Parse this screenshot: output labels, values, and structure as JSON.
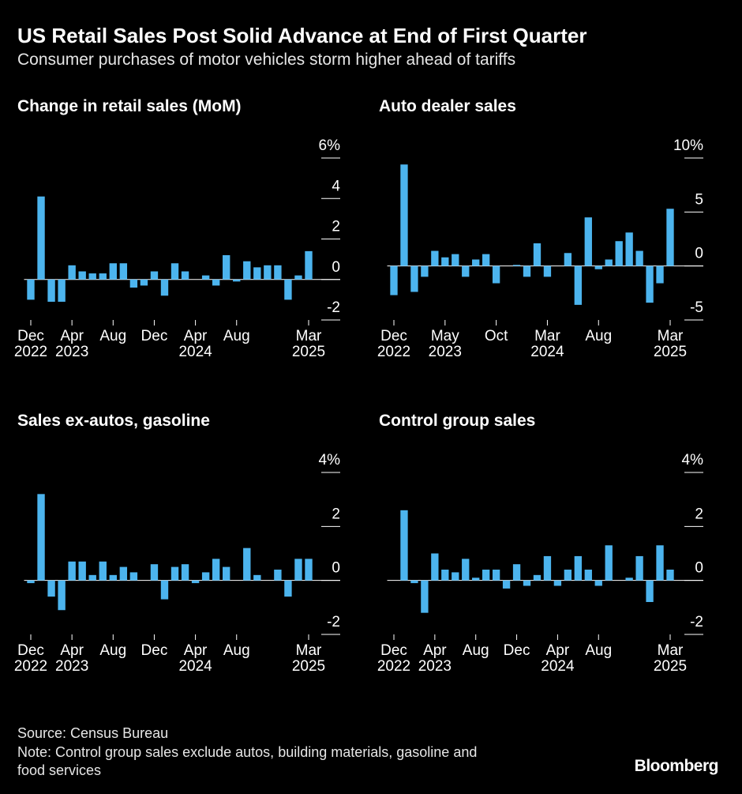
{
  "header": {
    "title": "US Retail Sales Post Solid Advance at End of First Quarter",
    "subtitle": "Consumer purchases of motor vehicles storm higher ahead of tariffs"
  },
  "footer": {
    "source": "Source: Census Bureau",
    "note_line1": "Note: Control group sales exclude autos, building materials, gasoline and",
    "note_line2": "food services",
    "brand": "Bloomberg"
  },
  "colors": {
    "bar": "#4cb4ee",
    "background": "#000000",
    "text": "#ffffff"
  },
  "chart_data": [
    {
      "type": "bar",
      "title": "Change in retail sales (MoM)",
      "unit": "%",
      "ylim": [
        -2,
        6
      ],
      "yticks": [
        {
          "value": 6,
          "label": "6%"
        },
        {
          "value": 4,
          "label": "4"
        },
        {
          "value": 2,
          "label": "2"
        },
        {
          "value": 0,
          "label": "0"
        },
        {
          "value": -2,
          "label": "-2"
        }
      ],
      "xticks": [
        {
          "index": 0,
          "line1": "Dec",
          "line2": "2022"
        },
        {
          "index": 4,
          "line1": "Apr",
          "line2": "2023"
        },
        {
          "index": 8,
          "line1": "Aug",
          "line2": ""
        },
        {
          "index": 12,
          "line1": "Dec",
          "line2": ""
        },
        {
          "index": 16,
          "line1": "Apr",
          "line2": "2024"
        },
        {
          "index": 20,
          "line1": "Aug",
          "line2": ""
        },
        {
          "index": 27,
          "line1": "Mar",
          "line2": "2025"
        }
      ],
      "values": [
        -1.0,
        4.1,
        -1.1,
        -1.1,
        0.7,
        0.4,
        0.3,
        0.3,
        0.8,
        0.8,
        -0.4,
        -0.3,
        0.4,
        -0.8,
        0.8,
        0.4,
        0.0,
        0.2,
        -0.3,
        1.2,
        -0.1,
        0.9,
        0.6,
        0.7,
        0.7,
        -1.0,
        0.2,
        1.4
      ]
    },
    {
      "type": "bar",
      "title": "Auto dealer sales",
      "unit": "%",
      "ylim": [
        -5,
        10
      ],
      "yticks": [
        {
          "value": 10,
          "label": "10%"
        },
        {
          "value": 5,
          "label": "5"
        },
        {
          "value": 0,
          "label": "0"
        },
        {
          "value": -5,
          "label": "-5"
        }
      ],
      "xticks": [
        {
          "index": 0,
          "line1": "Dec",
          "line2": "2022"
        },
        {
          "index": 5,
          "line1": "May",
          "line2": "2023"
        },
        {
          "index": 10,
          "line1": "Oct",
          "line2": ""
        },
        {
          "index": 15,
          "line1": "Mar",
          "line2": "2024"
        },
        {
          "index": 20,
          "line1": "Aug",
          "line2": ""
        },
        {
          "index": 27,
          "line1": "Mar",
          "line2": "2025"
        }
      ],
      "values": [
        -2.7,
        9.4,
        -2.4,
        -1.0,
        1.4,
        0.8,
        1.1,
        -1.0,
        0.6,
        1.1,
        -1.6,
        0.0,
        0.1,
        -1.0,
        2.1,
        -1.0,
        0.0,
        1.2,
        -3.6,
        4.5,
        -0.3,
        0.6,
        2.3,
        3.1,
        1.4,
        -3.4,
        -1.6,
        5.3
      ]
    },
    {
      "type": "bar",
      "title": "Sales ex-autos, gasoline",
      "unit": "%",
      "ylim": [
        -2,
        4
      ],
      "yticks": [
        {
          "value": 4,
          "label": "4%"
        },
        {
          "value": 2,
          "label": "2"
        },
        {
          "value": 0,
          "label": "0"
        },
        {
          "value": -2,
          "label": "-2"
        }
      ],
      "xticks": [
        {
          "index": 0,
          "line1": "Dec",
          "line2": "2022"
        },
        {
          "index": 4,
          "line1": "Apr",
          "line2": "2023"
        },
        {
          "index": 8,
          "line1": "Aug",
          "line2": ""
        },
        {
          "index": 12,
          "line1": "Dec",
          "line2": ""
        },
        {
          "index": 16,
          "line1": "Apr",
          "line2": "2024"
        },
        {
          "index": 20,
          "line1": "Aug",
          "line2": ""
        },
        {
          "index": 27,
          "line1": "Mar",
          "line2": "2025"
        }
      ],
      "values": [
        -0.1,
        3.2,
        -0.6,
        -1.1,
        0.7,
        0.7,
        0.2,
        0.7,
        0.2,
        0.5,
        0.3,
        0.0,
        0.6,
        -0.7,
        0.5,
        0.6,
        -0.1,
        0.3,
        0.8,
        0.5,
        0.0,
        1.2,
        0.2,
        0.0,
        0.4,
        -0.6,
        0.8,
        0.8
      ]
    },
    {
      "type": "bar",
      "title": "Control group sales",
      "unit": "%",
      "ylim": [
        -2,
        4
      ],
      "yticks": [
        {
          "value": 4,
          "label": "4%"
        },
        {
          "value": 2,
          "label": "2"
        },
        {
          "value": 0,
          "label": "0"
        },
        {
          "value": -2,
          "label": "-2"
        }
      ],
      "xticks": [
        {
          "index": 0,
          "line1": "Dec",
          "line2": "2022"
        },
        {
          "index": 4,
          "line1": "Apr",
          "line2": "2023"
        },
        {
          "index": 8,
          "line1": "Aug",
          "line2": ""
        },
        {
          "index": 12,
          "line1": "Dec",
          "line2": ""
        },
        {
          "index": 16,
          "line1": "Apr",
          "line2": "2024"
        },
        {
          "index": 20,
          "line1": "Aug",
          "line2": ""
        },
        {
          "index": 27,
          "line1": "Mar",
          "line2": "2025"
        }
      ],
      "values": [
        0.0,
        2.6,
        -0.1,
        -1.2,
        1.0,
        0.4,
        0.3,
        0.8,
        0.1,
        0.4,
        0.4,
        -0.3,
        0.6,
        -0.2,
        0.2,
        0.9,
        -0.2,
        0.4,
        0.9,
        0.4,
        -0.2,
        1.3,
        0.0,
        0.1,
        0.9,
        -0.8,
        1.3,
        0.4
      ]
    }
  ]
}
